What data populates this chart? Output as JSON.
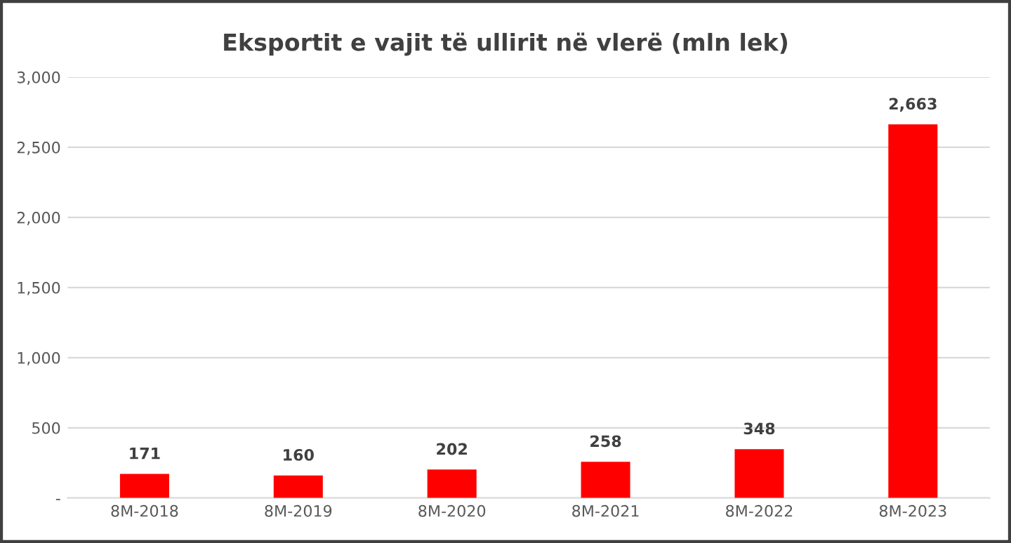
{
  "chart_data": {
    "type": "bar",
    "title": "Eksportit e vajit të ullirit në vlerë (mln lek)",
    "categories": [
      "8M-2018",
      "8M-2019",
      "8M-2020",
      "8M-2021",
      "8M-2022",
      "8M-2023"
    ],
    "values": [
      171,
      160,
      202,
      258,
      348,
      2663
    ],
    "value_labels": [
      "171",
      "160",
      "202",
      "258",
      "348",
      "2,663"
    ],
    "color": "#ff0000",
    "ylim": [
      0,
      3000
    ],
    "yticks": [
      {
        "value": 0,
        "label": "-"
      },
      {
        "value": 500,
        "label": "500"
      },
      {
        "value": 1000,
        "label": "1,000"
      },
      {
        "value": 1500,
        "label": "1,500"
      },
      {
        "value": 2000,
        "label": "2,000"
      },
      {
        "value": 2500,
        "label": "2,500"
      },
      {
        "value": 3000,
        "label": "3,000"
      }
    ],
    "grid": "y",
    "legend": false
  }
}
